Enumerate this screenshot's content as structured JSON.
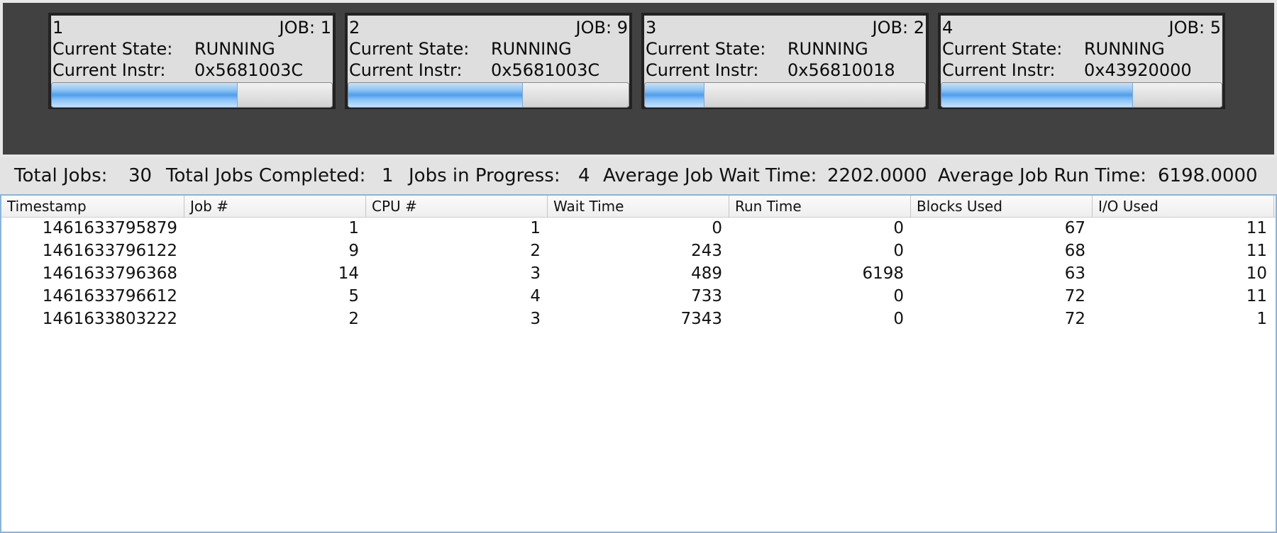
{
  "cpus": [
    {
      "id": "1",
      "job_label": "JOB:",
      "job": "1",
      "state_label": "Current State:",
      "state": "RUNNING",
      "instr_label": "Current Instr:",
      "instr": "0x5681003C",
      "progress_pct": 66
    },
    {
      "id": "2",
      "job_label": "JOB:",
      "job": "9",
      "state_label": "Current State:",
      "state": "RUNNING",
      "instr_label": "Current Instr:",
      "instr": "0x5681003C",
      "progress_pct": 62
    },
    {
      "id": "3",
      "job_label": "JOB:",
      "job": "2",
      "state_label": "Current State:",
      "state": "RUNNING",
      "instr_label": "Current Instr:",
      "instr": "0x56810018",
      "progress_pct": 21
    },
    {
      "id": "4",
      "job_label": "JOB:",
      "job": "5",
      "state_label": "Current State:",
      "state": "RUNNING",
      "instr_label": "Current Instr:",
      "instr": "0x43920000",
      "progress_pct": 68
    }
  ],
  "stats": {
    "total_jobs_label": "Total Jobs:",
    "total_jobs": "30",
    "completed_label": "Total Jobs Completed:",
    "completed": "1",
    "in_progress_label": "Jobs in Progress:",
    "in_progress": "4",
    "avg_wait_label": "Average Job Wait Time:",
    "avg_wait": "2202.0000",
    "avg_run_label": "Average Job Run Time:",
    "avg_run": "6198.0000"
  },
  "table": {
    "columns": [
      "Timestamp",
      "Job #",
      "CPU #",
      "Wait Time",
      "Run Time",
      "Blocks Used",
      "I/O Used"
    ],
    "rows": [
      [
        "1461633795879",
        "1",
        "1",
        "0",
        "0",
        "67",
        "11"
      ],
      [
        "1461633796122",
        "9",
        "2",
        "243",
        "0",
        "68",
        "11"
      ],
      [
        "1461633796368",
        "14",
        "3",
        "489",
        "6198",
        "63",
        "10"
      ],
      [
        "1461633796612",
        "5",
        "4",
        "733",
        "0",
        "72",
        "11"
      ],
      [
        "1461633803222",
        "2",
        "3",
        "7343",
        "0",
        "72",
        "1"
      ]
    ]
  },
  "colors": {
    "cpu_area_bg": "#414141",
    "panel_bg": "#dedede",
    "progress_fill": "#4f9ded",
    "table_border": "#8ab4d9"
  }
}
